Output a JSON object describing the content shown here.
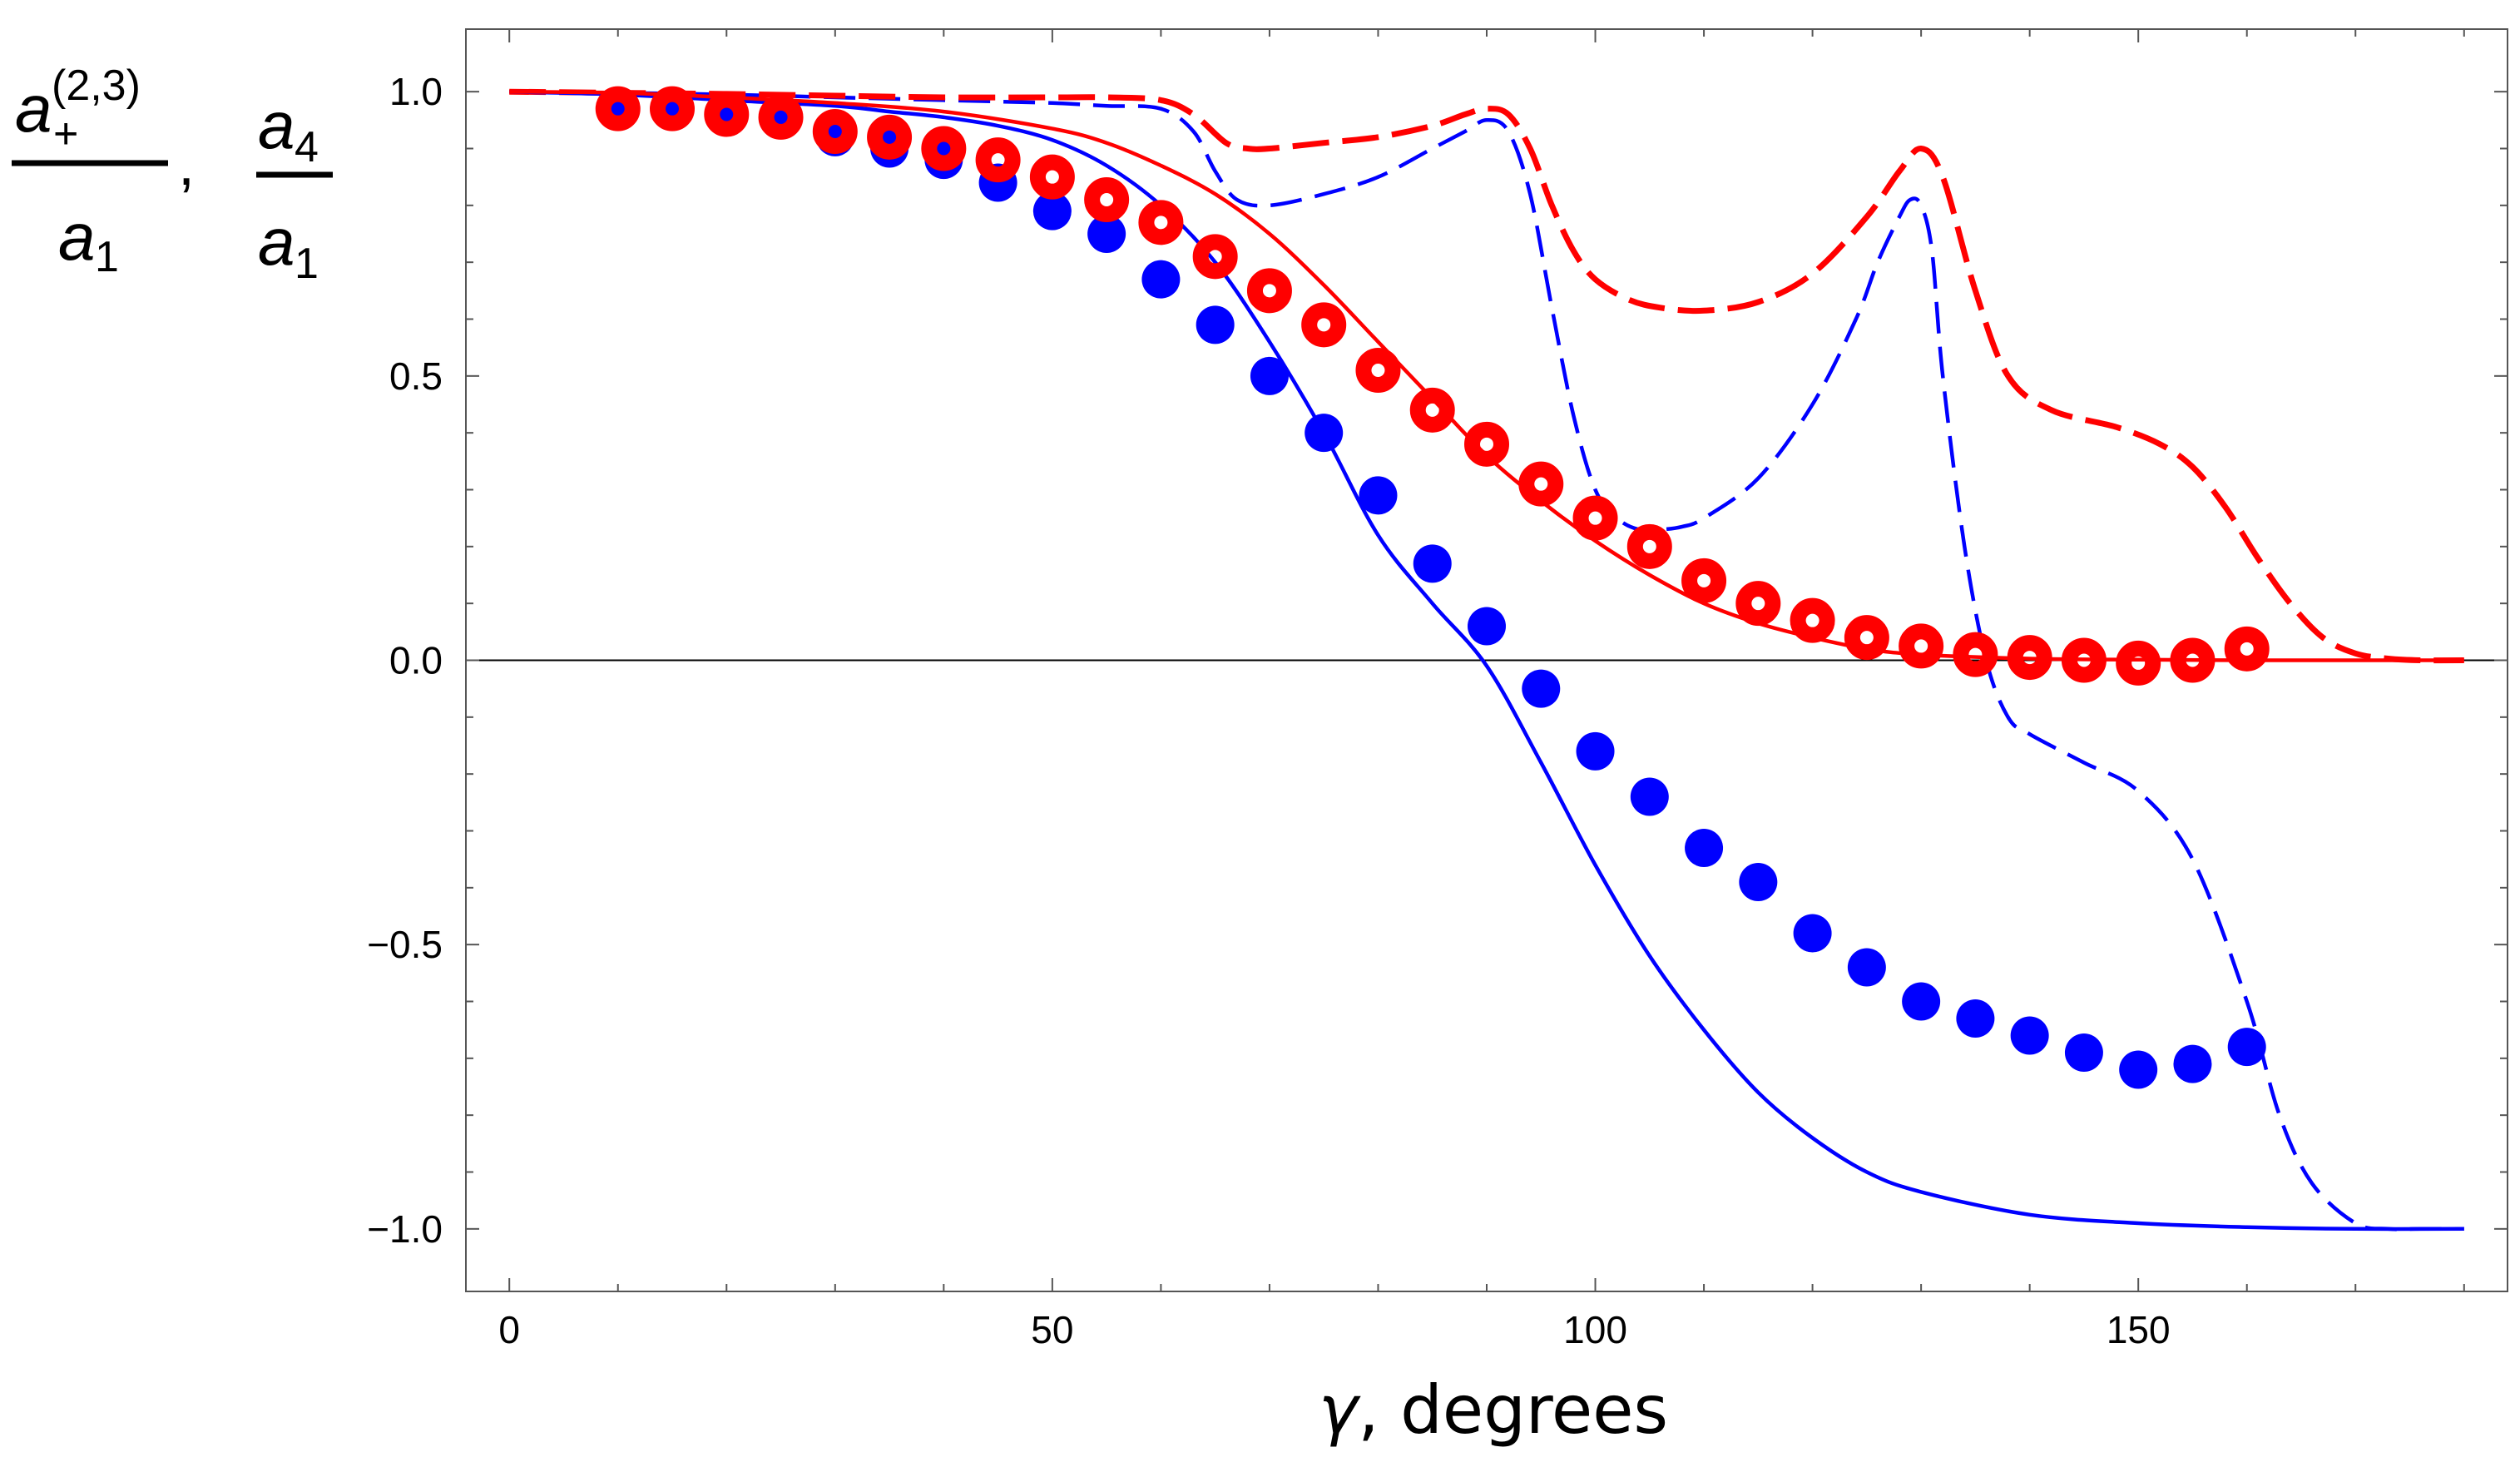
{
  "chart_data": {
    "type": "line",
    "title": "",
    "xlabel": "γ, degrees",
    "xlabel_symbol": "γ",
    "xlabel_unit": ", degrees",
    "ylabel_left": {
      "var": "a",
      "sub": "+",
      "sup": "(2,3)",
      "den_var": "a",
      "den_sub": "1",
      "sep": ","
    },
    "ylabel_right": {
      "var": "a",
      "sub": "4",
      "den_var": "a",
      "den_sub": "1"
    },
    "xlim": [
      -4,
      184
    ],
    "ylim": [
      -1.11,
      1.11
    ],
    "xticks": [
      0,
      50,
      100,
      150
    ],
    "xtick_labels": [
      "0",
      "50",
      "100",
      "150"
    ],
    "yticks": [
      1.0,
      0.5,
      0.0,
      -0.5,
      -1.0
    ],
    "ytick_labels": [
      "1.0",
      "0.5",
      "0.0",
      "−0.5",
      "−1.0"
    ],
    "zero_line": true,
    "colors": {
      "red": "#ff0000",
      "blue": "#0000ff",
      "frame": "#555555"
    },
    "series": [
      {
        "name": "blue-dashed",
        "style": "dashed",
        "color": "#0000ff",
        "x": [
          0,
          10,
          20,
          30,
          40,
          50,
          55,
          60,
          63,
          65,
          67,
          70,
          75,
          80,
          85,
          88,
          90,
          92,
          94,
          96,
          98,
          100,
          102,
          104,
          106,
          108,
          110,
          115,
          120,
          124,
          126,
          128,
          129,
          130,
          131,
          132,
          134,
          136,
          138,
          140,
          145,
          150,
          155,
          160,
          163,
          166,
          170,
          173,
          176,
          180
        ],
        "y": [
          1.0,
          0.998,
          0.995,
          0.99,
          0.985,
          0.98,
          0.975,
          0.97,
          0.93,
          0.86,
          0.81,
          0.8,
          0.82,
          0.85,
          0.9,
          0.93,
          0.95,
          0.93,
          0.82,
          0.62,
          0.43,
          0.3,
          0.25,
          0.23,
          0.23,
          0.235,
          0.25,
          0.32,
          0.45,
          0.6,
          0.7,
          0.78,
          0.81,
          0.8,
          0.72,
          0.5,
          0.2,
          0.0,
          -0.1,
          -0.13,
          -0.18,
          -0.23,
          -0.35,
          -0.6,
          -0.8,
          -0.92,
          -0.99,
          -1.0,
          -1.0,
          -1.0
        ]
      },
      {
        "name": "red-dashed",
        "style": "dashed",
        "color": "#ff0000",
        "x": [
          0,
          10,
          20,
          30,
          40,
          50,
          55,
          60,
          63,
          66,
          68,
          70,
          75,
          80,
          85,
          88,
          90,
          92,
          94,
          96,
          98,
          100,
          103,
          106,
          110,
          115,
          120,
          125,
          128,
          130,
          132,
          135,
          138,
          142,
          148,
          152,
          155,
          158,
          161,
          164,
          167,
          170,
          173,
          176,
          180
        ],
        "y": [
          1.0,
          0.998,
          0.996,
          0.993,
          0.99,
          0.99,
          0.99,
          0.985,
          0.96,
          0.91,
          0.9,
          0.9,
          0.91,
          0.92,
          0.94,
          0.96,
          0.97,
          0.96,
          0.9,
          0.8,
          0.72,
          0.67,
          0.635,
          0.62,
          0.615,
          0.63,
          0.68,
          0.78,
          0.86,
          0.9,
          0.85,
          0.65,
          0.5,
          0.44,
          0.41,
          0.38,
          0.34,
          0.27,
          0.18,
          0.1,
          0.04,
          0.012,
          0.003,
          0.0,
          0.0
        ]
      },
      {
        "name": "blue-solid",
        "style": "solid",
        "color": "#0000ff",
        "x": [
          0,
          10,
          20,
          30,
          35,
          40,
          45,
          50,
          55,
          60,
          65,
          70,
          75,
          80,
          85,
          90,
          95,
          100,
          105,
          110,
          115,
          120,
          125,
          130,
          140,
          150,
          160,
          170,
          180
        ],
        "y": [
          1.0,
          0.995,
          0.985,
          0.975,
          0.965,
          0.955,
          0.94,
          0.915,
          0.87,
          0.8,
          0.7,
          0.56,
          0.4,
          0.22,
          0.1,
          -0.01,
          -0.18,
          -0.36,
          -0.52,
          -0.65,
          -0.76,
          -0.84,
          -0.9,
          -0.935,
          -0.975,
          -0.99,
          -0.997,
          -1.0,
          -1.0
        ]
      },
      {
        "name": "red-solid",
        "style": "solid",
        "color": "#ff0000",
        "x": [
          0,
          10,
          20,
          30,
          40,
          50,
          55,
          60,
          65,
          70,
          75,
          80,
          85,
          90,
          95,
          100,
          105,
          110,
          115,
          120,
          125,
          130,
          140,
          150,
          160,
          170,
          180
        ],
        "y": [
          1.0,
          0.998,
          0.99,
          0.98,
          0.965,
          0.935,
          0.91,
          0.87,
          0.82,
          0.75,
          0.66,
          0.56,
          0.46,
          0.36,
          0.28,
          0.21,
          0.15,
          0.1,
          0.065,
          0.04,
          0.02,
          0.01,
          0.003,
          0.001,
          0.0,
          0.0,
          0.0
        ]
      }
    ],
    "markers": [
      {
        "name": "blue-circles",
        "style": "filled-circle",
        "color": "#0000ff",
        "x": [
          10,
          15,
          20,
          25,
          30,
          35,
          40,
          45,
          50,
          55,
          60,
          65,
          70,
          75,
          80,
          85,
          90,
          95,
          100,
          105,
          110,
          115,
          120,
          125,
          130,
          135,
          140,
          145,
          150,
          155,
          160
        ],
        "y": [
          0.97,
          0.97,
          0.96,
          0.96,
          0.92,
          0.9,
          0.88,
          0.84,
          0.79,
          0.75,
          0.67,
          0.59,
          0.5,
          0.4,
          0.29,
          0.17,
          0.06,
          -0.05,
          -0.16,
          -0.24,
          -0.33,
          -0.39,
          -0.48,
          -0.54,
          -0.6,
          -0.63,
          -0.66,
          -0.69,
          -0.72,
          -0.71,
          -0.68
        ]
      },
      {
        "name": "red-rings",
        "style": "ring",
        "color": "#ff0000",
        "x": [
          10,
          15,
          20,
          25,
          30,
          35,
          40,
          45,
          50,
          55,
          60,
          65,
          70,
          75,
          80,
          85,
          90,
          95,
          100,
          105,
          110,
          115,
          120,
          125,
          130,
          135,
          140,
          145,
          150,
          155,
          160
        ],
        "y": [
          0.97,
          0.97,
          0.96,
          0.955,
          0.93,
          0.92,
          0.9,
          0.88,
          0.85,
          0.81,
          0.77,
          0.71,
          0.65,
          0.59,
          0.51,
          0.44,
          0.38,
          0.31,
          0.25,
          0.2,
          0.14,
          0.1,
          0.07,
          0.04,
          0.025,
          0.01,
          0.005,
          0.0,
          -0.005,
          0.0,
          0.02
        ]
      }
    ]
  }
}
